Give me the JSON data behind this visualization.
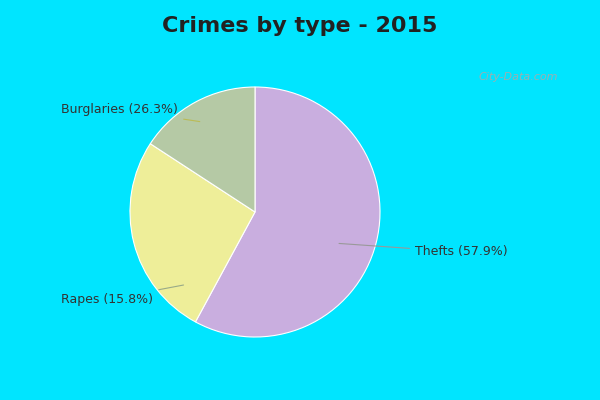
{
  "title": "Crimes by type - 2015",
  "slices": [
    {
      "label": "Thefts (57.9%)",
      "value": 57.9,
      "color": "#C9AEDF"
    },
    {
      "label": "Burglaries (26.3%)",
      "value": 26.3,
      "color": "#EEEE99"
    },
    {
      "label": "Rapes (15.8%)",
      "value": 15.8,
      "color": "#B5C9A5"
    }
  ],
  "background_cyan": "#00E5FF",
  "background_main": "#D0EDE0",
  "title_fontsize": 16,
  "label_fontsize": 9,
  "watermark": "City-Data.com",
  "startangle": 90,
  "title_color": "#222222"
}
